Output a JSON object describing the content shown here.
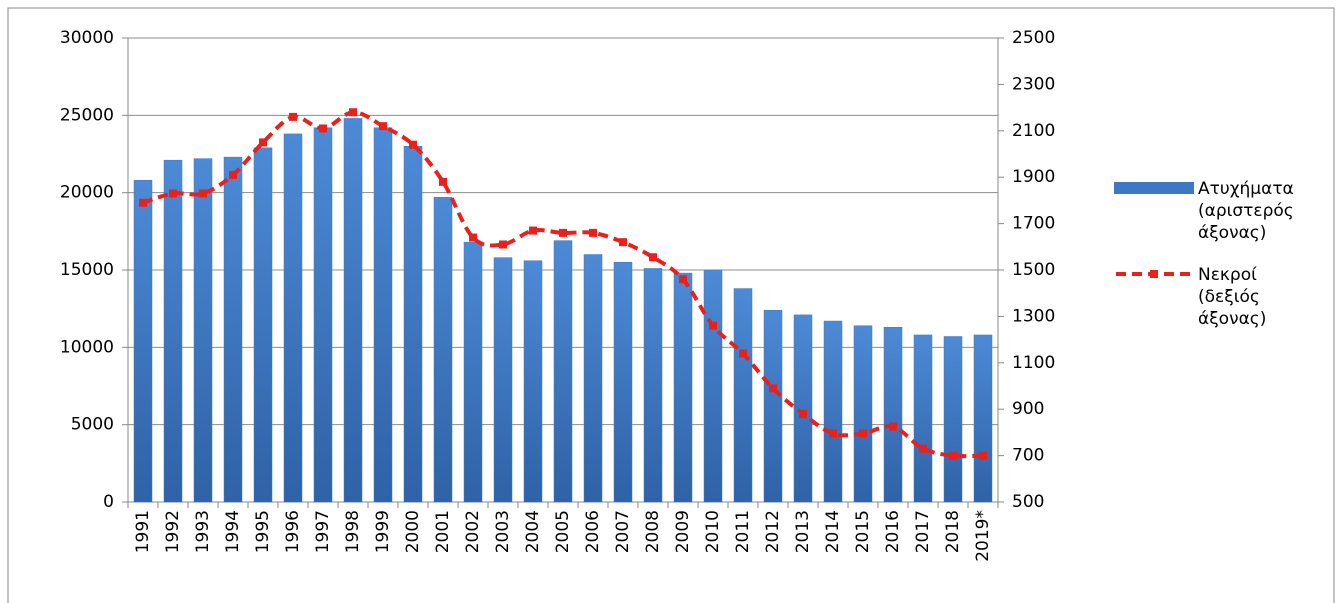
{
  "chart_data": {
    "type": "bar",
    "categories": [
      "1991",
      "1992",
      "1993",
      "1994",
      "1995",
      "1996",
      "1997",
      "1998",
      "1999",
      "2000",
      "2001",
      "2002",
      "2003",
      "2004",
      "2005",
      "2006",
      "2007",
      "2008",
      "2009",
      "2010",
      "2011",
      "2012",
      "2013",
      "2014",
      "2015",
      "2016",
      "2017",
      "2018",
      "2019*"
    ],
    "series": [
      {
        "name": "Ατυχήματα (αριστερός άξονας)",
        "type": "bar",
        "color": "#3f78c2",
        "values": [
          20800,
          22100,
          22200,
          22300,
          22900,
          23800,
          24200,
          24800,
          24200,
          23000,
          19700,
          16800,
          15800,
          15600,
          16900,
          16000,
          15500,
          15100,
          14800,
          15000,
          13800,
          12400,
          12100,
          11700,
          11400,
          11300,
          10800,
          10700,
          10800
        ]
      },
      {
        "name": "Νεκροί (δεξιός άξονας)",
        "type": "line",
        "axis": "y2",
        "color": "#e8211d",
        "values": [
          1790,
          1830,
          1830,
          1910,
          2050,
          2160,
          2110,
          2180,
          2120,
          2040,
          1880,
          1640,
          1610,
          1670,
          1660,
          1660,
          1620,
          1555,
          1460,
          1260,
          1140,
          990,
          880,
          795,
          795,
          825,
          730,
          700,
          700
        ]
      }
    ],
    "ylim": [
      0,
      30000
    ],
    "yticks": [
      0,
      5000,
      10000,
      15000,
      20000,
      25000,
      30000
    ],
    "y2lim": [
      500,
      2500
    ],
    "y2ticks": [
      500,
      700,
      900,
      1100,
      1300,
      1500,
      1700,
      1900,
      2100,
      2300,
      2500
    ],
    "grid": true,
    "legend": "right"
  }
}
